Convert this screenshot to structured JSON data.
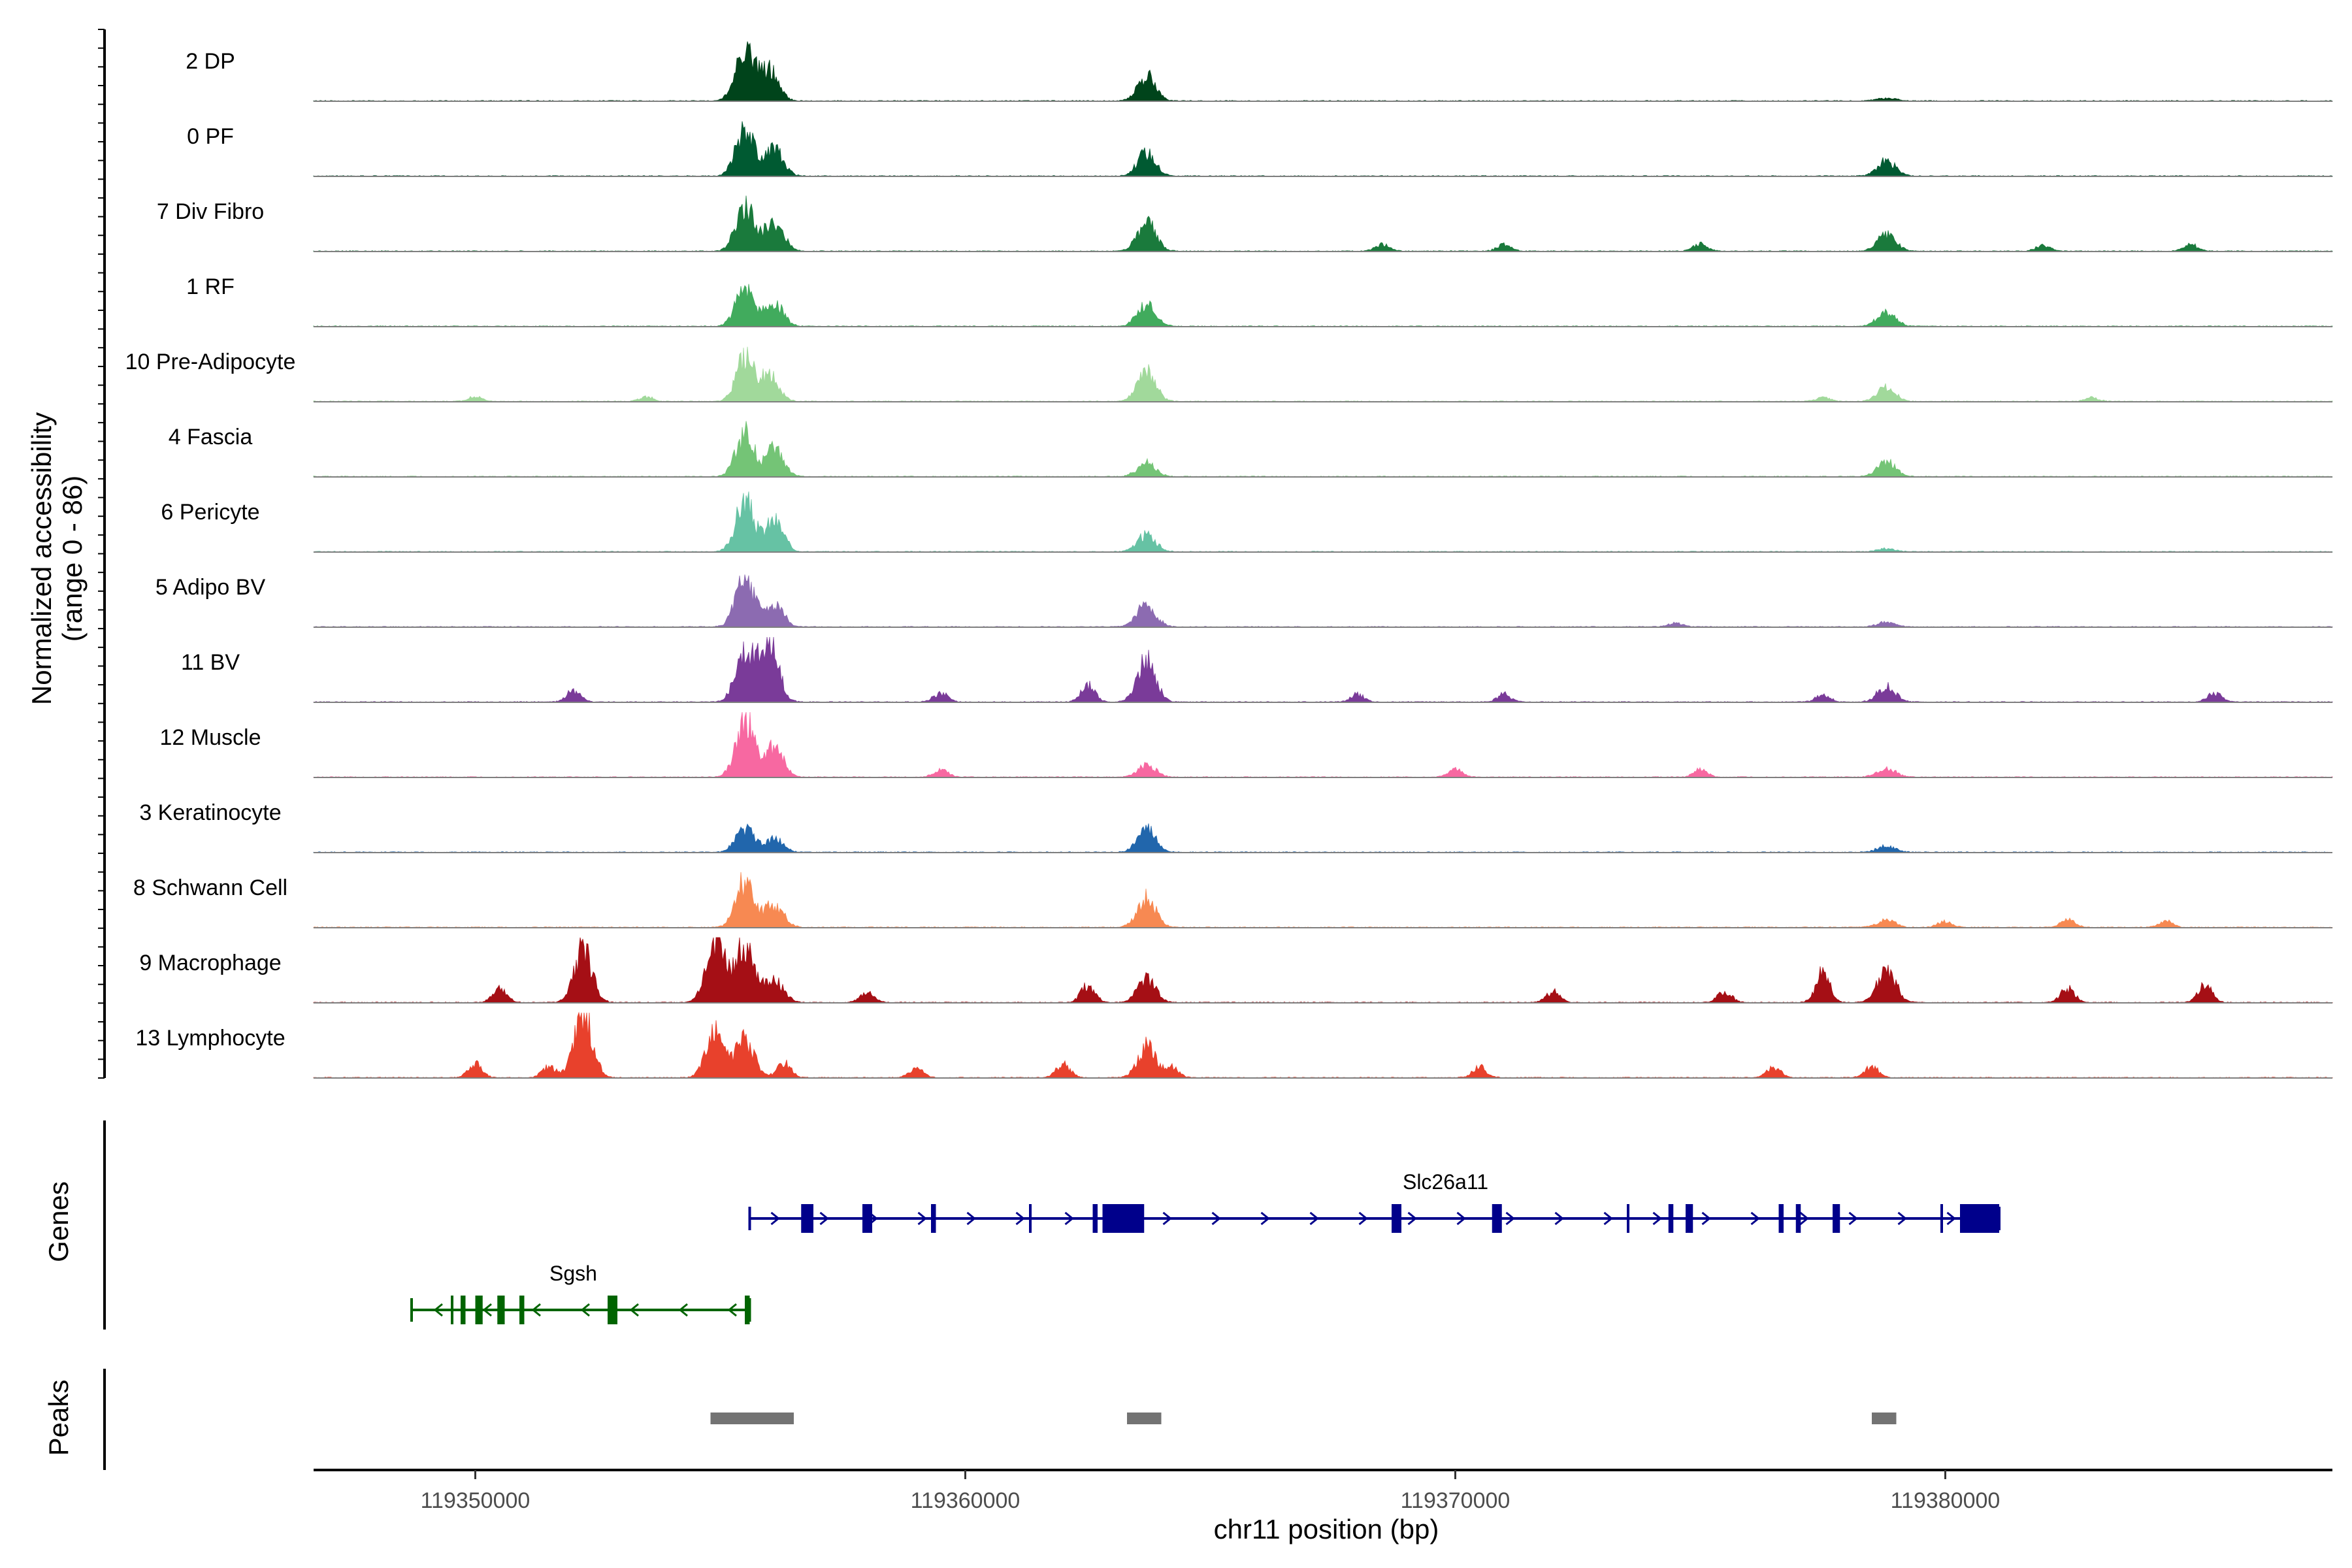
{
  "chart_data": {
    "type": "area",
    "title": "",
    "xlabel": "chr11 position (bp)",
    "xlim": [
      119346700,
      119387900
    ],
    "x_ticks": [
      119350000,
      119360000,
      119370000,
      119380000
    ],
    "x_tick_labels": [
      "119350000",
      "119360000",
      "119370000",
      "119380000"
    ],
    "ylabel_line1": "Normalized accessibility",
    "ylabel_line2": "(range 0 - 86)",
    "ylim": [
      0,
      86
    ],
    "grid": false,
    "legend": "none",
    "tracks": [
      {
        "name": "2 DP",
        "color": "#00441b",
        "peaks": [
          [
            119355500,
            70
          ],
          [
            119356000,
            40
          ],
          [
            119363700,
            32
          ],
          [
            119378800,
            4
          ]
        ],
        "extra": []
      },
      {
        "name": "0 PF",
        "color": "#005a32",
        "peaks": [
          [
            119355500,
            60
          ],
          [
            119356100,
            35
          ],
          [
            119363700,
            30
          ],
          [
            119378800,
            20
          ]
        ],
        "extra": []
      },
      {
        "name": "7 Div Fibro",
        "color": "#1a7a3c",
        "peaks": [
          [
            119355500,
            60
          ],
          [
            119356100,
            40
          ],
          [
            119363700,
            38
          ],
          [
            119378800,
            22
          ]
        ],
        "extra": [
          [
            119368500,
            9
          ],
          [
            119371000,
            9
          ],
          [
            119375000,
            9
          ],
          [
            119382000,
            8
          ],
          [
            119385000,
            9
          ]
        ]
      },
      {
        "name": "1 RF",
        "color": "#41ab5d",
        "peaks": [
          [
            119355500,
            50
          ],
          [
            119356100,
            30
          ],
          [
            119363700,
            30
          ],
          [
            119378800,
            18
          ]
        ],
        "extra": []
      },
      {
        "name": "10 Pre-Adipocyte",
        "color": "#a1d99b",
        "peaks": [
          [
            119355500,
            55
          ],
          [
            119356000,
            35
          ],
          [
            119363700,
            40
          ],
          [
            119378800,
            18
          ]
        ],
        "extra": [
          [
            119350000,
            6
          ],
          [
            119353500,
            6
          ],
          [
            119377500,
            5
          ],
          [
            119383000,
            5
          ]
        ]
      },
      {
        "name": "4 Fascia",
        "color": "#74c476",
        "peaks": [
          [
            119355500,
            55
          ],
          [
            119356100,
            35
          ],
          [
            119363700,
            18
          ],
          [
            119378800,
            20
          ]
        ],
        "extra": []
      },
      {
        "name": "6 Pericyte",
        "color": "#66c2a4",
        "peaks": [
          [
            119355500,
            65
          ],
          [
            119356100,
            40
          ],
          [
            119363700,
            22
          ],
          [
            119378800,
            4
          ]
        ],
        "extra": []
      },
      {
        "name": "5 Adipo BV",
        "color": "#8c6bb1",
        "peaks": [
          [
            119355500,
            65
          ],
          [
            119356100,
            30
          ],
          [
            119363700,
            30
          ],
          [
            119378800,
            6
          ]
        ],
        "extra": [
          [
            119374500,
            5
          ]
        ]
      },
      {
        "name": "11 BV",
        "color": "#7a3b99",
        "peaks": [
          [
            119355500,
            70
          ],
          [
            119356000,
            80
          ],
          [
            119363700,
            55
          ],
          [
            119378800,
            20
          ]
        ],
        "extra": [
          [
            119352000,
            14
          ],
          [
            119359500,
            12
          ],
          [
            119362500,
            22
          ],
          [
            119368000,
            10
          ],
          [
            119371000,
            10
          ],
          [
            119377500,
            10
          ],
          [
            119385500,
            12
          ]
        ]
      },
      {
        "name": "12 Muscle",
        "color": "#f768a1",
        "peaks": [
          [
            119355500,
            75
          ],
          [
            119356100,
            40
          ],
          [
            119363700,
            16
          ],
          [
            119378800,
            12
          ]
        ],
        "extra": [
          [
            119359500,
            10
          ],
          [
            119370000,
            10
          ],
          [
            119375000,
            10
          ]
        ]
      },
      {
        "name": "3 Keratinocyte",
        "color": "#2166ac",
        "peaks": [
          [
            119355500,
            30
          ],
          [
            119356100,
            18
          ],
          [
            119363700,
            30
          ],
          [
            119378800,
            8
          ]
        ],
        "extra": []
      },
      {
        "name": "8 Schwann Cell",
        "color": "#f78952",
        "peaks": [
          [
            119355500,
            60
          ],
          [
            119356100,
            30
          ],
          [
            119363700,
            40
          ],
          [
            119378800,
            10
          ]
        ],
        "extra": [
          [
            119380000,
            8
          ],
          [
            119382500,
            10
          ],
          [
            119384500,
            8
          ]
        ]
      },
      {
        "name": "9 Macrophage",
        "color": "#a50f15",
        "peaks": [
          [
            119352200,
            70
          ],
          [
            119354900,
            86
          ],
          [
            119355500,
            80
          ],
          [
            119356100,
            30
          ],
          [
            119363700,
            30
          ],
          [
            119378800,
            45
          ]
        ],
        "extra": [
          [
            119350500,
            18
          ],
          [
            119358000,
            12
          ],
          [
            119362500,
            22
          ],
          [
            119372000,
            14
          ],
          [
            119375500,
            14
          ],
          [
            119377500,
            38
          ],
          [
            119382500,
            18
          ],
          [
            119385300,
            22
          ]
        ]
      },
      {
        "name": "13 Lymphocyte",
        "color": "#e8412c",
        "peaks": [
          [
            119352200,
            86
          ],
          [
            119354900,
            60
          ],
          [
            119355500,
            50
          ],
          [
            119363700,
            40
          ]
        ],
        "extra": [
          [
            119350000,
            18
          ],
          [
            119351500,
            14
          ],
          [
            119356300,
            20
          ],
          [
            119359000,
            12
          ],
          [
            119362000,
            18
          ],
          [
            119364200,
            14
          ],
          [
            119370500,
            14
          ],
          [
            119376500,
            14
          ],
          [
            119378500,
            14
          ]
        ]
      }
    ],
    "gene_track_label": "Genes",
    "genes": [
      {
        "name": "Slc26a11",
        "strand": "+",
        "start": 119355600,
        "end": 119381100,
        "color": "#00008b",
        "exons": [
          [
            119356650,
            119356900
          ],
          [
            119357900,
            119358100
          ],
          [
            119359300,
            119359400
          ],
          [
            119362600,
            119362700
          ],
          [
            119362800,
            119363650
          ],
          [
            119368700,
            119368900
          ],
          [
            119370750,
            119370950
          ],
          [
            119374350,
            119374450
          ],
          [
            119374700,
            119374850
          ],
          [
            119376600,
            119376700
          ],
          [
            119376950,
            119377050
          ],
          [
            119377700,
            119377850
          ],
          [
            119380300,
            119381100
          ]
        ],
        "thin": [
          [
            119361300,
            119361350
          ],
          [
            119363000,
            119363020
          ],
          [
            119373500,
            119373550
          ],
          [
            119379900,
            119379950
          ]
        ]
      },
      {
        "name": "Sgsh",
        "strand": "-",
        "start": 119348700,
        "end": 119355600,
        "color": "#006400",
        "exons": [
          [
            119349700,
            119349800
          ],
          [
            119350000,
            119350150
          ],
          [
            119350450,
            119350600
          ],
          [
            119350900,
            119351000
          ],
          [
            119352700,
            119352900
          ],
          [
            119355500,
            119355600
          ]
        ],
        "thin": [
          [
            119349500,
            119349550
          ]
        ]
      }
    ],
    "peak_track_label": "Peaks",
    "called_peaks": [
      [
        119354800,
        119356500
      ],
      [
        119363300,
        119364000
      ],
      [
        119378500,
        119379000
      ]
    ]
  }
}
